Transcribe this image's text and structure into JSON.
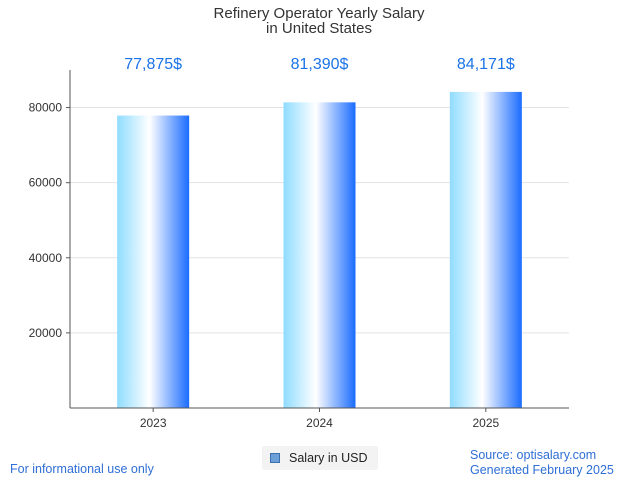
{
  "chart_data": {
    "type": "bar",
    "title_lines": [
      "Refinery Operator Yearly Salary",
      "in United States"
    ],
    "categories": [
      "2023",
      "2024",
      "2025"
    ],
    "series": [
      {
        "name": "Salary in USD",
        "values": [
          77875,
          81390,
          84171
        ]
      }
    ],
    "data_labels": [
      "77,875$",
      "81,390$",
      "84,171$"
    ],
    "y_ticks": [
      20000,
      40000,
      60000,
      80000
    ],
    "ylim": [
      0,
      90000
    ],
    "grid": true,
    "legend_position": "bottom-center",
    "colors": {
      "bar_light": "#8fdcff",
      "bar_mid": "#ffffff",
      "bar_dark": "#1a6cff",
      "label": "#1a73e8"
    }
  },
  "footer": {
    "left": "For informational use only",
    "source": "Source: optisalary.com",
    "generated": "Generated February 2025"
  }
}
